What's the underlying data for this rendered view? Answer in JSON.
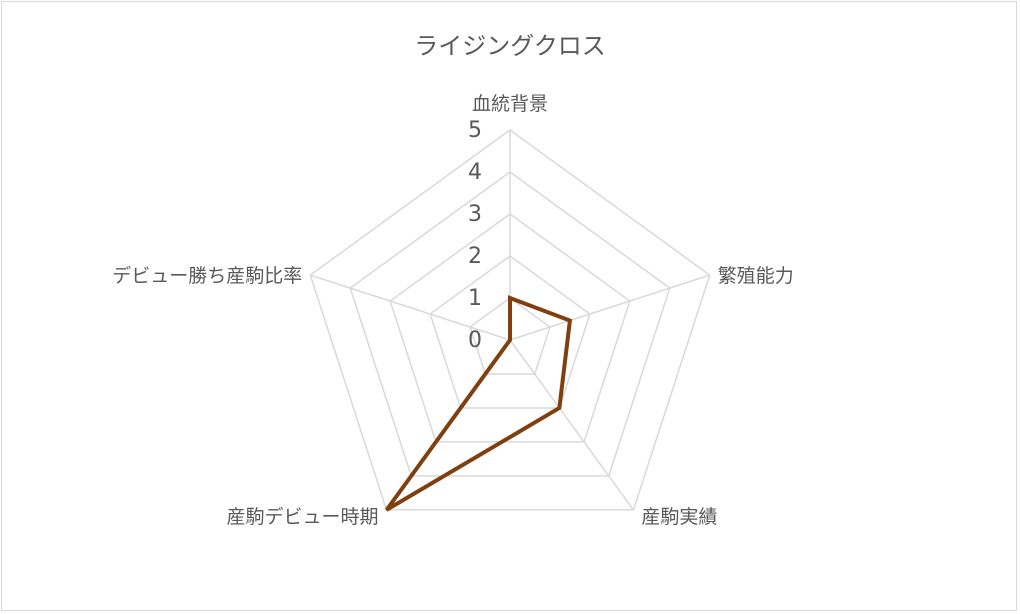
{
  "chart_data": {
    "type": "radar",
    "title": "ライジングクロス",
    "axes": [
      "血統背景",
      "繁殖能力",
      "産駒実績",
      "産駒デビュー時期",
      "デビュー勝ち産駒比率"
    ],
    "ticks": [
      0,
      1,
      2,
      3,
      4,
      5
    ],
    "rmax": 5,
    "series": [
      {
        "values": [
          1,
          1.5,
          2,
          5,
          0
        ],
        "color": "#7f3f0f"
      }
    ],
    "grid": true,
    "legend": "none"
  }
}
